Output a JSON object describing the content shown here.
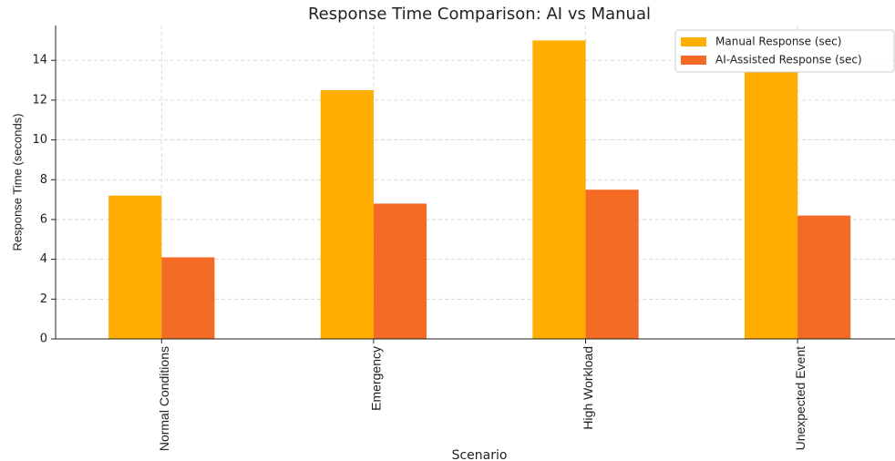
{
  "chart_data": {
    "type": "bar",
    "title": "Response Time Comparison: AI vs Manual",
    "xlabel": "Scenario",
    "ylabel": "Response Time (seconds)",
    "categories": [
      "Normal Conditions",
      "Emergency",
      "High Workload",
      "Unexpected Event"
    ],
    "series": [
      {
        "name": "Manual Response (sec)",
        "color": "#ffae00",
        "values": [
          7.2,
          12.5,
          15.0,
          13.4
        ]
      },
      {
        "name": "AI-Assisted Response (sec)",
        "color": "#f46b25",
        "values": [
          4.1,
          6.8,
          7.5,
          6.2
        ]
      }
    ],
    "ylim": [
      0,
      15.75
    ],
    "yticks": [
      0,
      2,
      4,
      6,
      8,
      10,
      12,
      14
    ],
    "grid": true,
    "legend": "upper right"
  }
}
